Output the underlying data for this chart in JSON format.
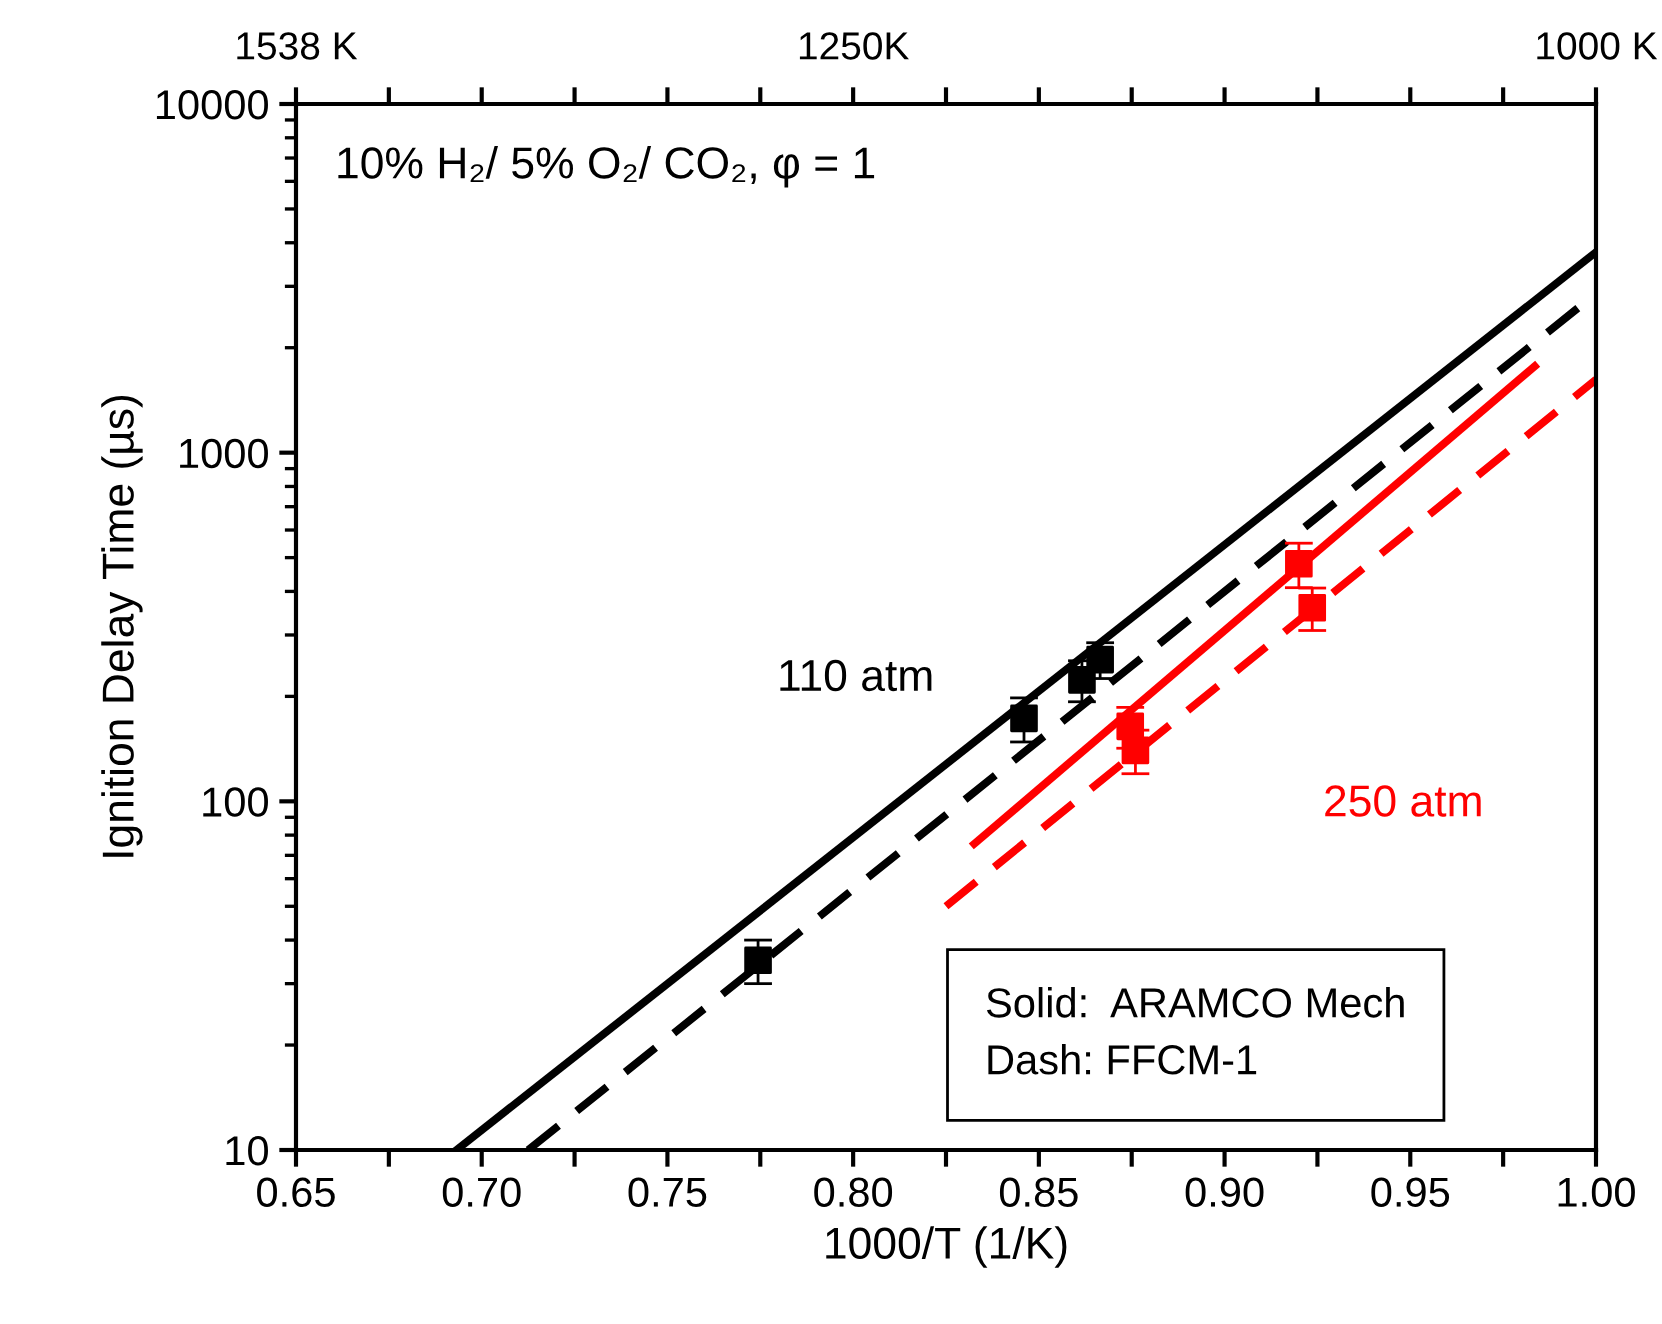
{
  "chart_data": {
    "type": "scatter",
    "xlabel": "1000/T (1/K)",
    "ylabel": "Ignition Delay Time (µs)",
    "log": "y",
    "grid": false,
    "legend": false,
    "marker": "square",
    "xlim": [
      0.65,
      1.0
    ],
    "xticks": [
      0.65,
      {
        "value": 0.675,
        "label": null
      },
      {
        "value": 0.7,
        "label": "0.70"
      },
      {
        "value": 0.725,
        "label": null
      },
      0.75,
      {
        "value": 0.775,
        "label": null
      },
      {
        "value": 0.8,
        "label": "0.80"
      },
      {
        "value": 0.825,
        "label": null
      },
      0.85,
      {
        "value": 0.875,
        "label": null
      },
      {
        "value": 0.9,
        "label": "0.90"
      },
      {
        "value": 0.925,
        "label": null
      },
      0.95,
      {
        "value": 0.975,
        "label": null
      },
      {
        "value": 1.0,
        "label": "1.00"
      }
    ],
    "ylim": [
      10,
      10000
    ],
    "yticks": [
      10,
      100,
      1000,
      10000
    ],
    "series": [
      {
        "color": "#000000",
        "x": [
          0.7744,
          0.846,
          0.8616,
          0.8665
        ],
        "values": [
          35,
          173,
          223,
          255
        ],
        "errors": [
          5,
          25,
          30,
          30
        ]
      },
      {
        "color": "#ff0000",
        "x": [
          0.8746,
          0.876,
          0.92,
          0.9236
        ],
        "values": [
          164,
          140,
          480,
          359
        ],
        "errors": [
          22,
          20,
          70,
          50
        ]
      },
      {
        "type": "line",
        "color": "#000000",
        "line_style": "solid",
        "marker": "none",
        "x": [
          0.6932,
          1.0
        ],
        "values": [
          10,
          3760
        ]
      },
      {
        "type": "line",
        "color": "#000000",
        "line_style": "dashed",
        "marker": "none",
        "x": [
          0.7125,
          1.0
        ],
        "values": [
          10,
          2860
        ]
      },
      {
        "type": "line",
        "color": "#ff0000",
        "line_style": "solid",
        "marker": "none",
        "x": [
          0.8326,
          0.9835
        ],
        "values": [
          75.5,
          1770
        ]
      },
      {
        "type": "line",
        "color": "#ff0000",
        "line_style": "dashed",
        "marker": "none",
        "x": [
          0.825,
          1.0
        ],
        "values": [
          50,
          1620
        ]
      }
    ],
    "annotations": [
      "10% H₂/ 5% O₂/ CO₂, φ = 1",
      "Solid:  ARAMCO Mech\nDash: FFCM-1",
      "110 atm",
      "250 atm",
      "1538 K",
      "1250K",
      "1000 K"
    ]
  }
}
